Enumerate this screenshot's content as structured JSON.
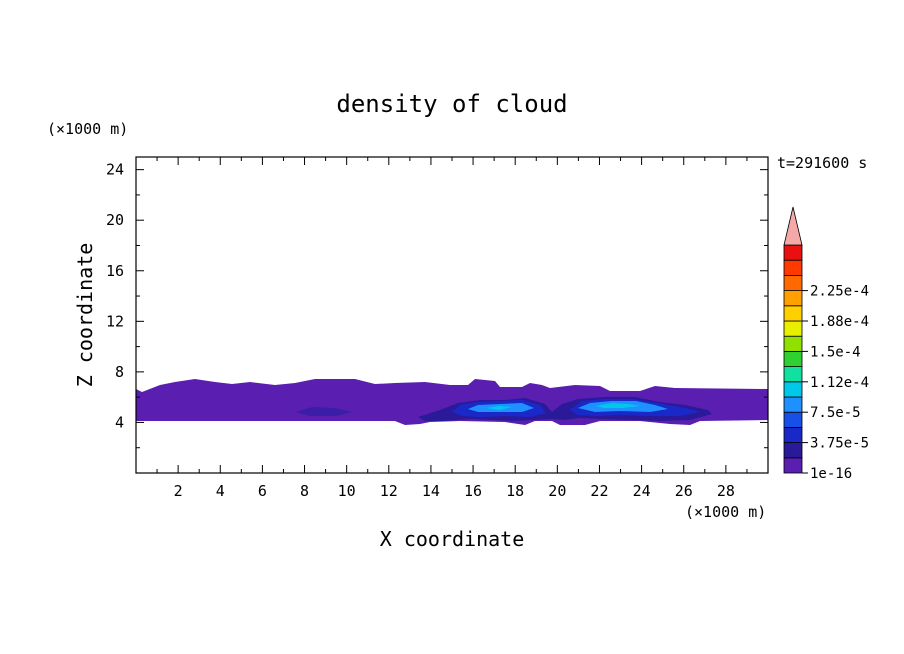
{
  "chart_data": {
    "type": "heatmap",
    "title": "density of cloud",
    "xlabel": "X coordinate",
    "ylabel": "Z coordinate",
    "x_unit": "(×1000 m)",
    "y_unit": "(×1000 m)",
    "time_label": "t=291600 s",
    "xlim": [
      0,
      30
    ],
    "ylim": [
      0,
      25
    ],
    "x_ticks": [
      2,
      4,
      6,
      8,
      10,
      12,
      14,
      16,
      18,
      20,
      22,
      24,
      26,
      28
    ],
    "y_ticks": [
      4,
      8,
      12,
      16,
      20,
      24
    ],
    "colorbar": {
      "tick_labels": [
        "1e-16",
        "3.75e-5",
        "7.5e-5",
        "1.12e-4",
        "1.5e-4",
        "1.88e-4",
        "2.25e-4"
      ],
      "colors": [
        "#5a1fb0",
        "#2a1a9a",
        "#1a28c8",
        "#1650e8",
        "#1e90ff",
        "#00c8e8",
        "#10e0a0",
        "#30d030",
        "#90e000",
        "#e8f000",
        "#ffd000",
        "#ffa000",
        "#ff6a00",
        "#ff3a00",
        "#e81010"
      ],
      "extend_color": "#f4a8a8"
    },
    "regions": [
      {
        "level": "1e-16",
        "description": "cloud layer",
        "x_range": [
          0,
          30
        ],
        "z_range": [
          4.0,
          7.3
        ]
      },
      {
        "level": "3.75e-5",
        "x_range": [
          13,
          28
        ],
        "z_range": [
          4.2,
          5.8
        ]
      },
      {
        "level": "7.5e-5",
        "x_range": [
          15,
          27
        ],
        "z_range": [
          4.6,
          5.6
        ]
      },
      {
        "level": "1.12e-4",
        "x_range": [
          16,
          24
        ],
        "z_range": [
          4.9,
          5.4
        ]
      }
    ]
  }
}
